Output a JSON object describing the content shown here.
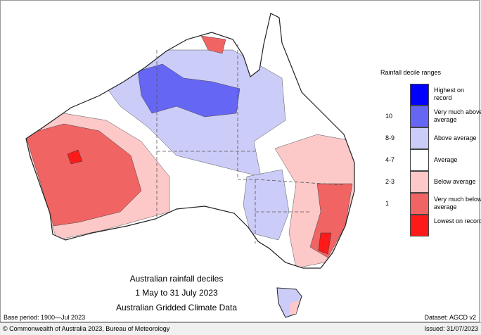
{
  "map": {
    "title": "Australian rainfall deciles",
    "period": "1 May to 31 July 2023",
    "source": "Australian Gridded Climate Data"
  },
  "legend": {
    "title": "Rainfall decile ranges",
    "items": [
      {
        "decile": "",
        "label": "Highest on record",
        "color": "#0000ff"
      },
      {
        "decile": "10",
        "label": "Very much above average",
        "color": "#6666f5"
      },
      {
        "decile": "8-9",
        "label": "Above average",
        "color": "#ccccf8"
      },
      {
        "decile": "4-7",
        "label": "Average",
        "color": "#ffffff"
      },
      {
        "decile": "2-3",
        "label": "Below average",
        "color": "#fcc8c8"
      },
      {
        "decile": "1",
        "label": "Very much below average",
        "color": "#f06464"
      },
      {
        "decile": "",
        "label": "Lowest on record",
        "color": "#ff1a1a"
      }
    ]
  },
  "footer": {
    "base_period": "Base period: 1900—Jul 2023",
    "dataset": "Dataset: AGCD v2",
    "copyright": "© Commonwealth of Australia 2023, Bureau of Meteorology",
    "issued": "Issued: 31/07/2023"
  }
}
